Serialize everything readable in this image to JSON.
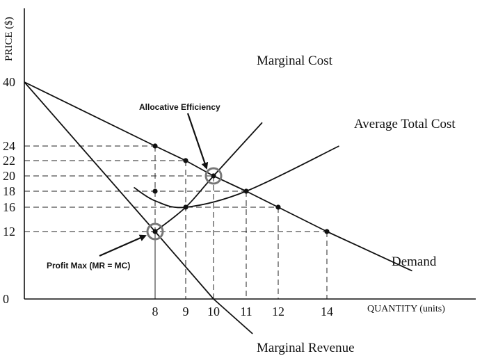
{
  "chart_data": {
    "type": "line",
    "xlabel": "QUANTITY (units)",
    "ylabel": "PRICE ($)",
    "x_ticks": [
      8,
      9,
      10,
      11,
      12,
      14
    ],
    "y_ticks": [
      40,
      24,
      22,
      20,
      18,
      16,
      12,
      0
    ],
    "series": [
      {
        "name": "Demand",
        "x": [
          0,
          8,
          9,
          10,
          11,
          12,
          14,
          17.5
        ],
        "y": [
          40,
          24,
          22,
          20,
          18,
          16,
          12,
          5
        ]
      },
      {
        "name": "Marginal Revenue",
        "x": [
          0,
          8,
          10,
          11.2
        ],
        "y": [
          40,
          12,
          0,
          -4
        ]
      },
      {
        "name": "Marginal Cost",
        "x": [
          8,
          9,
          10,
          11.5
        ],
        "y": [
          12,
          16,
          20,
          30
        ]
      },
      {
        "name": "Average Total Cost",
        "x": [
          6.7,
          8,
          9,
          11,
          14.5
        ],
        "y": [
          18.5,
          16.8,
          16,
          18,
          24
        ]
      }
    ],
    "points": [
      {
        "x": 8,
        "y": 24
      },
      {
        "x": 9,
        "y": 22
      },
      {
        "x": 10,
        "y": 20
      },
      {
        "x": 11,
        "y": 18
      },
      {
        "x": 12,
        "y": 16
      },
      {
        "x": 14,
        "y": 12
      },
      {
        "x": 8,
        "y": 18
      },
      {
        "x": 9,
        "y": 16
      },
      {
        "x": 8,
        "y": 12
      }
    ],
    "guides": [
      {
        "x": 8,
        "y": 24
      },
      {
        "x": 9,
        "y": 22
      },
      {
        "x": 10,
        "y": 20
      },
      {
        "x": 11,
        "y": 18
      },
      {
        "x": 12,
        "y": 16
      },
      {
        "x": 14,
        "y": 12
      },
      {
        "x": 8,
        "y": 12
      }
    ],
    "annotations": [
      {
        "text": "Allocative Efficiency",
        "x": 10,
        "y": 20
      },
      {
        "text": "Profit Max (MR = MC)",
        "x": 8,
        "y": 12
      }
    ]
  }
}
